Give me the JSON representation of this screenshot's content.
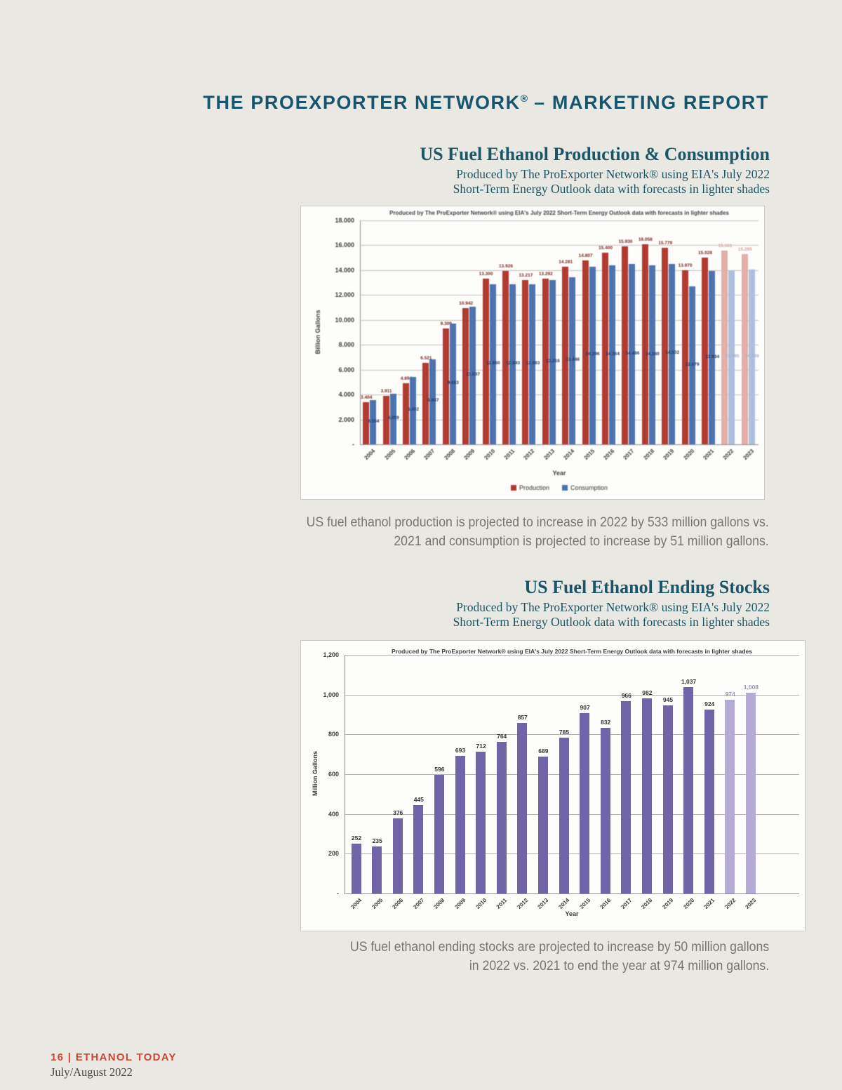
{
  "page_title": {
    "main": "THE PROEXPORTER NETWORK",
    "reg": "®",
    "rest": " – MARKETING REPORT"
  },
  "sections": [
    {
      "heading": "US Fuel Ethanol Production & Consumption",
      "subtitle": [
        "Produced by The ProExporter Network® using EIA's July 2022",
        "Short-Term Energy Outlook data with forecasts in lighter shades"
      ],
      "caption": [
        "US fuel ethanol production is projected to increase in 2022 by 533 million gallons vs.",
        "2021 and consumption is projected to increase by 51 million gallons."
      ]
    },
    {
      "heading": "US Fuel Ethanol Ending Stocks",
      "subtitle": [
        "Produced by The ProExporter Network® using EIA's July 2022",
        "Short-Term Energy Outlook data with forecasts in lighter shades"
      ],
      "caption": [
        "US fuel ethanol ending stocks are projected to increase by 50 million gallons",
        "in 2022 vs. 2021 to end the year at 974 million gallons."
      ]
    }
  ],
  "footer": {
    "page_label": "16 | ETHANOL TODAY",
    "issue": "July/August 2022"
  },
  "chart_data": [
    {
      "type": "bar",
      "title": "Produced by The ProExporter Network® using EIA's July 2022 Short-Term Energy Outlook data with forecasts in lighter shades",
      "xlabel": "Year",
      "ylabel": "Billion Gallons",
      "ylim": [
        0,
        18000
      ],
      "grid": true,
      "legend_position": "bottom",
      "ytick_labels": [
        "18.000",
        "16.000",
        "14.000",
        "12.000",
        "10.000",
        "8.000",
        "6.000",
        "4.000",
        "2.000"
      ],
      "zero_label": "-",
      "categories": [
        "2004",
        "2005",
        "2006",
        "2007",
        "2008",
        "2009",
        "2010",
        "2011",
        "2012",
        "2013",
        "2014",
        "2015",
        "2016",
        "2017",
        "2018",
        "2019",
        "2020",
        "2021",
        "2022",
        "2023"
      ],
      "forecast_categories": [
        "2022",
        "2023"
      ],
      "series": [
        {
          "name": "Production",
          "color": "#b13a31",
          "forecast_color": "#e3afa9",
          "label_color": "#7a241f",
          "forecast_label_color": "#d9a09a",
          "values": [
            3404,
            3911,
            4894,
            6521,
            9309,
            10942,
            13300,
            13926,
            13217,
            13292,
            14281,
            14807,
            15400,
            15930,
            16058,
            15779,
            13970,
            15028,
            15561,
            15295
          ],
          "labels": [
            "3.404",
            "3.911",
            "4.894",
            "6.521",
            "9.309",
            "10.942",
            "13.300",
            "13.926",
            "13.217",
            "13.292",
            "14.281",
            "14.807",
            "15.400",
            "15.930",
            "16.058",
            "15.779",
            "13.970",
            "15.028",
            "15.561",
            "15.295"
          ]
        },
        {
          "name": "Consumption",
          "color": "#4d73ae",
          "forecast_color": "#aec0dd",
          "label_color": "#1d3a66",
          "forecast_label_color": "#9fb3d1",
          "values": [
            3554,
            4059,
            5402,
            6847,
            9683,
            11037,
            12860,
            12893,
            12883,
            13216,
            13446,
            14296,
            14364,
            14486,
            14380,
            14502,
            12679,
            13934,
            13985,
            14048
          ],
          "labels": [
            "3.554",
            "4.059",
            "5.402",
            "6.847",
            "9.683",
            "11.037",
            "12.860",
            "12.893",
            "12.883",
            "13.216",
            "13.446",
            "14.296",
            "14.364",
            "14.486",
            "14.380",
            "14.502",
            "12.679",
            "13.934",
            "13.985",
            "14.048"
          ]
        }
      ]
    },
    {
      "type": "bar",
      "title": "Produced by The ProExporter Network® using EIA's July 2022 Short-Term Energy Outlook data with forecasts in lighter shades",
      "xlabel": "Year",
      "ylabel": "Million Gallons",
      "ylim": [
        0,
        1200
      ],
      "grid": true,
      "legend_position": "none",
      "ytick_labels": [
        "1,200",
        "1,000",
        "800",
        "600",
        "400",
        "200"
      ],
      "zero_label": "-",
      "categories": [
        "2004",
        "2005",
        "2006",
        "2007",
        "2008",
        "2009",
        "2010",
        "2011",
        "2012",
        "2013",
        "2014",
        "2015",
        "2016",
        "2017",
        "2018",
        "2019",
        "2020",
        "2021",
        "2022",
        "2023"
      ],
      "forecast_categories": [
        "2022",
        "2023"
      ],
      "series": [
        {
          "name": "Ending Stocks",
          "color": "#7163a8",
          "forecast_color": "#b6abd4",
          "label_color": "#333333",
          "forecast_label_color": "#9b96a8",
          "values": [
            252,
            235,
            376,
            445,
            596,
            693,
            712,
            764,
            857,
            689,
            785,
            907,
            832,
            966,
            982,
            945,
            1037,
            924,
            974,
            1008
          ],
          "labels": [
            "252",
            "235",
            "376",
            "445",
            "596",
            "693",
            "712",
            "764",
            "857",
            "689",
            "785",
            "907",
            "832",
            "966",
            "982",
            "945",
            "1,037",
            "924",
            "974",
            "1,008"
          ]
        }
      ]
    }
  ]
}
